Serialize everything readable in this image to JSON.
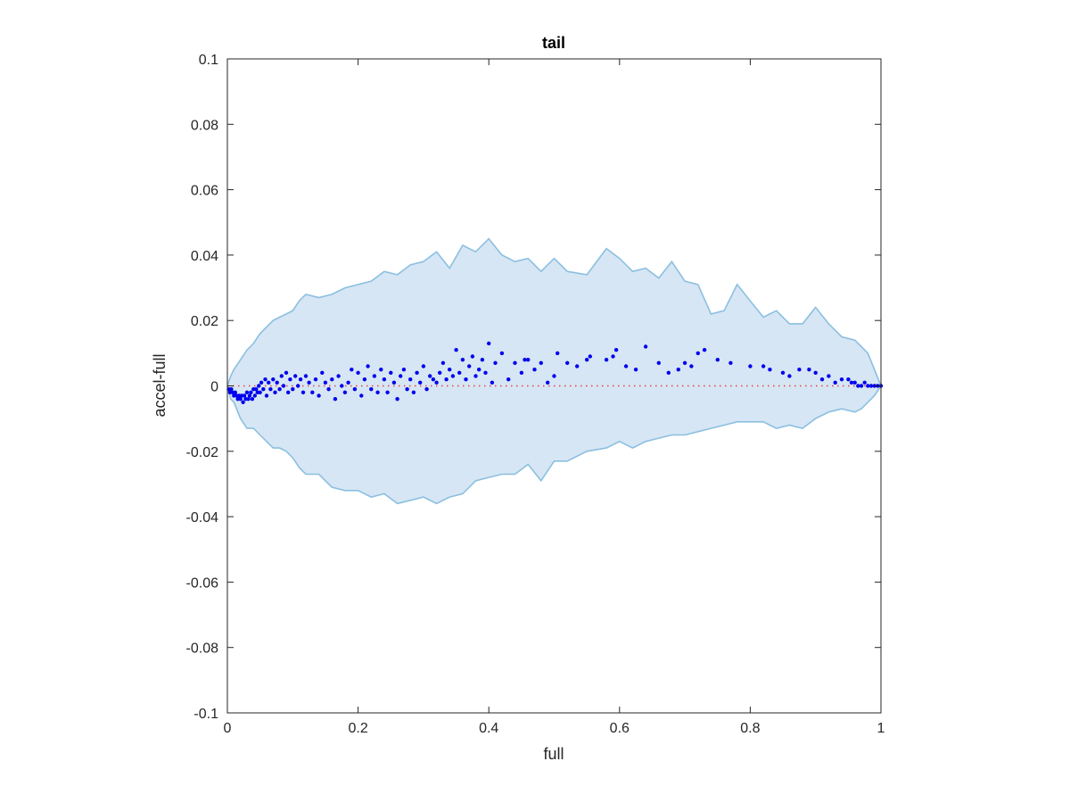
{
  "chart_data": {
    "type": "scatter",
    "title": "tail",
    "xlabel": "full",
    "ylabel": "accel-full",
    "xlim": [
      0,
      1
    ],
    "ylim": [
      -0.1,
      0.1
    ],
    "grid": false,
    "x_ticks": [
      0,
      0.2,
      0.4,
      0.6,
      0.8,
      1
    ],
    "x_tick_labels": [
      "0",
      "0.2",
      "0.4",
      "0.6",
      "0.8",
      "1"
    ],
    "y_ticks": [
      0.1,
      0.08,
      0.06,
      0.04,
      0.02,
      0,
      -0.02,
      -0.04,
      -0.06,
      -0.08,
      -0.1
    ],
    "y_tick_labels": [
      "0.1",
      "0.08",
      "0.06",
      "0.04",
      "0.02",
      "0",
      "-0.02",
      "-0.04",
      "-0.06",
      "-0.08",
      "-0.1"
    ],
    "band": {
      "fill_color": "#d6e6f4",
      "line_color": "#8cbfe0",
      "upper": [
        [
          0,
          0
        ],
        [
          0.005,
          0.003
        ],
        [
          0.01,
          0.005
        ],
        [
          0.02,
          0.008
        ],
        [
          0.03,
          0.011
        ],
        [
          0.04,
          0.013
        ],
        [
          0.05,
          0.016
        ],
        [
          0.06,
          0.018
        ],
        [
          0.07,
          0.02
        ],
        [
          0.08,
          0.021
        ],
        [
          0.09,
          0.022
        ],
        [
          0.1,
          0.023
        ],
        [
          0.11,
          0.026
        ],
        [
          0.12,
          0.028
        ],
        [
          0.14,
          0.027
        ],
        [
          0.16,
          0.028
        ],
        [
          0.18,
          0.03
        ],
        [
          0.2,
          0.031
        ],
        [
          0.22,
          0.032
        ],
        [
          0.24,
          0.035
        ],
        [
          0.26,
          0.034
        ],
        [
          0.28,
          0.037
        ],
        [
          0.3,
          0.038
        ],
        [
          0.32,
          0.041
        ],
        [
          0.34,
          0.036
        ],
        [
          0.36,
          0.043
        ],
        [
          0.38,
          0.041
        ],
        [
          0.4,
          0.045
        ],
        [
          0.42,
          0.04
        ],
        [
          0.44,
          0.038
        ],
        [
          0.46,
          0.039
        ],
        [
          0.48,
          0.035
        ],
        [
          0.5,
          0.039
        ],
        [
          0.52,
          0.035
        ],
        [
          0.55,
          0.034
        ],
        [
          0.58,
          0.042
        ],
        [
          0.6,
          0.039
        ],
        [
          0.62,
          0.035
        ],
        [
          0.64,
          0.036
        ],
        [
          0.66,
          0.033
        ],
        [
          0.68,
          0.038
        ],
        [
          0.7,
          0.032
        ],
        [
          0.72,
          0.031
        ],
        [
          0.74,
          0.022
        ],
        [
          0.76,
          0.023
        ],
        [
          0.78,
          0.031
        ],
        [
          0.8,
          0.026
        ],
        [
          0.82,
          0.021
        ],
        [
          0.84,
          0.023
        ],
        [
          0.86,
          0.019
        ],
        [
          0.88,
          0.019
        ],
        [
          0.9,
          0.024
        ],
        [
          0.92,
          0.019
        ],
        [
          0.94,
          0.015
        ],
        [
          0.96,
          0.014
        ],
        [
          0.97,
          0.012
        ],
        [
          0.98,
          0.01
        ],
        [
          0.99,
          0.005
        ],
        [
          1,
          0
        ]
      ],
      "lower": [
        [
          0,
          0
        ],
        [
          0.005,
          -0.004
        ],
        [
          0.01,
          -0.005
        ],
        [
          0.02,
          -0.01
        ],
        [
          0.03,
          -0.013
        ],
        [
          0.04,
          -0.013
        ],
        [
          0.05,
          -0.015
        ],
        [
          0.06,
          -0.017
        ],
        [
          0.07,
          -0.019
        ],
        [
          0.08,
          -0.019
        ],
        [
          0.09,
          -0.02
        ],
        [
          0.1,
          -0.022
        ],
        [
          0.11,
          -0.025
        ],
        [
          0.12,
          -0.027
        ],
        [
          0.14,
          -0.027
        ],
        [
          0.16,
          -0.031
        ],
        [
          0.18,
          -0.032
        ],
        [
          0.2,
          -0.032
        ],
        [
          0.22,
          -0.034
        ],
        [
          0.24,
          -0.033
        ],
        [
          0.26,
          -0.036
        ],
        [
          0.28,
          -0.035
        ],
        [
          0.3,
          -0.034
        ],
        [
          0.32,
          -0.036
        ],
        [
          0.34,
          -0.034
        ],
        [
          0.36,
          -0.033
        ],
        [
          0.38,
          -0.029
        ],
        [
          0.4,
          -0.028
        ],
        [
          0.42,
          -0.027
        ],
        [
          0.44,
          -0.027
        ],
        [
          0.46,
          -0.024
        ],
        [
          0.48,
          -0.029
        ],
        [
          0.5,
          -0.023
        ],
        [
          0.52,
          -0.023
        ],
        [
          0.55,
          -0.02
        ],
        [
          0.58,
          -0.019
        ],
        [
          0.6,
          -0.017
        ],
        [
          0.62,
          -0.019
        ],
        [
          0.64,
          -0.017
        ],
        [
          0.66,
          -0.016
        ],
        [
          0.68,
          -0.015
        ],
        [
          0.7,
          -0.015
        ],
        [
          0.72,
          -0.014
        ],
        [
          0.74,
          -0.013
        ],
        [
          0.76,
          -0.012
        ],
        [
          0.78,
          -0.011
        ],
        [
          0.8,
          -0.011
        ],
        [
          0.82,
          -0.011
        ],
        [
          0.84,
          -0.013
        ],
        [
          0.86,
          -0.012
        ],
        [
          0.88,
          -0.013
        ],
        [
          0.9,
          -0.01
        ],
        [
          0.92,
          -0.008
        ],
        [
          0.94,
          -0.007
        ],
        [
          0.96,
          -0.008
        ],
        [
          0.97,
          -0.007
        ],
        [
          0.98,
          -0.005
        ],
        [
          0.99,
          -0.003
        ],
        [
          1,
          0
        ]
      ]
    },
    "reference_line": {
      "y": 0,
      "color": "#e64040",
      "style": "dotted"
    },
    "series": [
      {
        "color": "#0000ee",
        "points": [
          [
            0.002,
            -0.001
          ],
          [
            0.004,
            -0.002
          ],
          [
            0.006,
            -0.001
          ],
          [
            0.008,
            -0.002
          ],
          [
            0.01,
            -0.003
          ],
          [
            0.012,
            -0.002
          ],
          [
            0.014,
            -0.003
          ],
          [
            0.016,
            -0.004
          ],
          [
            0.018,
            -0.003
          ],
          [
            0.02,
            -0.004
          ],
          [
            0.022,
            -0.003
          ],
          [
            0.024,
            -0.005
          ],
          [
            0.026,
            -0.003
          ],
          [
            0.028,
            -0.004
          ],
          [
            0.03,
            -0.002
          ],
          [
            0.032,
            -0.004
          ],
          [
            0.034,
            -0.003
          ],
          [
            0.036,
            -0.002
          ],
          [
            0.038,
            -0.004
          ],
          [
            0.04,
            -0.001
          ],
          [
            0.042,
            -0.003
          ],
          [
            0.044,
            -0.001
          ],
          [
            0.046,
            -0.002
          ],
          [
            0.048,
            0
          ],
          [
            0.05,
            -0.002
          ],
          [
            0.052,
            0.001
          ],
          [
            0.055,
            -0.001
          ],
          [
            0.058,
            0.002
          ],
          [
            0.06,
            -0.003
          ],
          [
            0.063,
            0.001
          ],
          [
            0.066,
            -0.001
          ],
          [
            0.07,
            0.002
          ],
          [
            0.073,
            -0.002
          ],
          [
            0.076,
            0.001
          ],
          [
            0.08,
            -0.001
          ],
          [
            0.083,
            0.003
          ],
          [
            0.086,
            0
          ],
          [
            0.09,
            0.004
          ],
          [
            0.093,
            -0.002
          ],
          [
            0.096,
            0.002
          ],
          [
            0.1,
            -0.001
          ],
          [
            0.104,
            0.003
          ],
          [
            0.108,
            0
          ],
          [
            0.112,
            0.002
          ],
          [
            0.116,
            -0.002
          ],
          [
            0.12,
            0.003
          ],
          [
            0.125,
            0.001
          ],
          [
            0.13,
            -0.002
          ],
          [
            0.135,
            0.002
          ],
          [
            0.14,
            -0.003
          ],
          [
            0.145,
            0.004
          ],
          [
            0.15,
            0.001
          ],
          [
            0.155,
            -0.001
          ],
          [
            0.16,
            0.002
          ],
          [
            0.165,
            -0.004
          ],
          [
            0.17,
            0.003
          ],
          [
            0.175,
            0
          ],
          [
            0.18,
            -0.002
          ],
          [
            0.185,
            0.001
          ],
          [
            0.19,
            0.005
          ],
          [
            0.195,
            -0.001
          ],
          [
            0.2,
            0.004
          ],
          [
            0.205,
            -0.003
          ],
          [
            0.21,
            0.002
          ],
          [
            0.215,
            0.006
          ],
          [
            0.22,
            -0.001
          ],
          [
            0.225,
            0.003
          ],
          [
            0.23,
            -0.002
          ],
          [
            0.235,
            0.005
          ],
          [
            0.24,
            0.002
          ],
          [
            0.245,
            -0.002
          ],
          [
            0.25,
            0.004
          ],
          [
            0.255,
            0.001
          ],
          [
            0.26,
            -0.004
          ],
          [
            0.265,
            0.003
          ],
          [
            0.27,
            0.005
          ],
          [
            0.275,
            -0.001
          ],
          [
            0.28,
            0.002
          ],
          [
            0.285,
            -0.002
          ],
          [
            0.29,
            0.004
          ],
          [
            0.295,
            0.001
          ],
          [
            0.3,
            0.006
          ],
          [
            0.305,
            -0.001
          ],
          [
            0.31,
            0.003
          ],
          [
            0.315,
            0.002
          ],
          [
            0.32,
            0.001
          ],
          [
            0.325,
            0.004
          ],
          [
            0.33,
            0.007
          ],
          [
            0.335,
            0.002
          ],
          [
            0.34,
            0.005
          ],
          [
            0.345,
            0.003
          ],
          [
            0.35,
            0.011
          ],
          [
            0.355,
            0.004
          ],
          [
            0.36,
            0.008
          ],
          [
            0.365,
            0.002
          ],
          [
            0.37,
            0.006
          ],
          [
            0.375,
            0.009
          ],
          [
            0.38,
            0.003
          ],
          [
            0.385,
            0.005
          ],
          [
            0.39,
            0.008
          ],
          [
            0.395,
            0.004
          ],
          [
            0.4,
            0.013
          ],
          [
            0.405,
            0.001
          ],
          [
            0.41,
            0.007
          ],
          [
            0.42,
            0.01
          ],
          [
            0.43,
            0.002
          ],
          [
            0.44,
            0.007
          ],
          [
            0.45,
            0.004
          ],
          [
            0.455,
            0.008
          ],
          [
            0.46,
            0.008
          ],
          [
            0.47,
            0.005
          ],
          [
            0.48,
            0.007
          ],
          [
            0.49,
            0.001
          ],
          [
            0.5,
            0.003
          ],
          [
            0.505,
            0.01
          ],
          [
            0.52,
            0.007
          ],
          [
            0.535,
            0.006
          ],
          [
            0.55,
            0.008
          ],
          [
            0.555,
            0.009
          ],
          [
            0.58,
            0.008
          ],
          [
            0.59,
            0.009
          ],
          [
            0.595,
            0.011
          ],
          [
            0.61,
            0.006
          ],
          [
            0.625,
            0.005
          ],
          [
            0.64,
            0.012
          ],
          [
            0.66,
            0.007
          ],
          [
            0.675,
            0.004
          ],
          [
            0.69,
            0.005
          ],
          [
            0.7,
            0.007
          ],
          [
            0.71,
            0.006
          ],
          [
            0.72,
            0.01
          ],
          [
            0.73,
            0.011
          ],
          [
            0.75,
            0.008
          ],
          [
            0.77,
            0.007
          ],
          [
            0.8,
            0.006
          ],
          [
            0.82,
            0.006
          ],
          [
            0.83,
            0.005
          ],
          [
            0.85,
            0.004
          ],
          [
            0.86,
            0.003
          ],
          [
            0.875,
            0.005
          ],
          [
            0.89,
            0.005
          ],
          [
            0.9,
            0.004
          ],
          [
            0.91,
            0.002
          ],
          [
            0.92,
            0.003
          ],
          [
            0.93,
            0.001
          ],
          [
            0.94,
            0.002
          ],
          [
            0.95,
            0.002
          ],
          [
            0.955,
            0.001
          ],
          [
            0.96,
            0.001
          ],
          [
            0.965,
            0
          ],
          [
            0.97,
            0
          ],
          [
            0.975,
            0.001
          ],
          [
            0.98,
            0
          ],
          [
            0.985,
            0
          ],
          [
            0.99,
            0
          ],
          [
            0.995,
            0
          ],
          [
            1,
            0
          ]
        ]
      }
    ]
  }
}
